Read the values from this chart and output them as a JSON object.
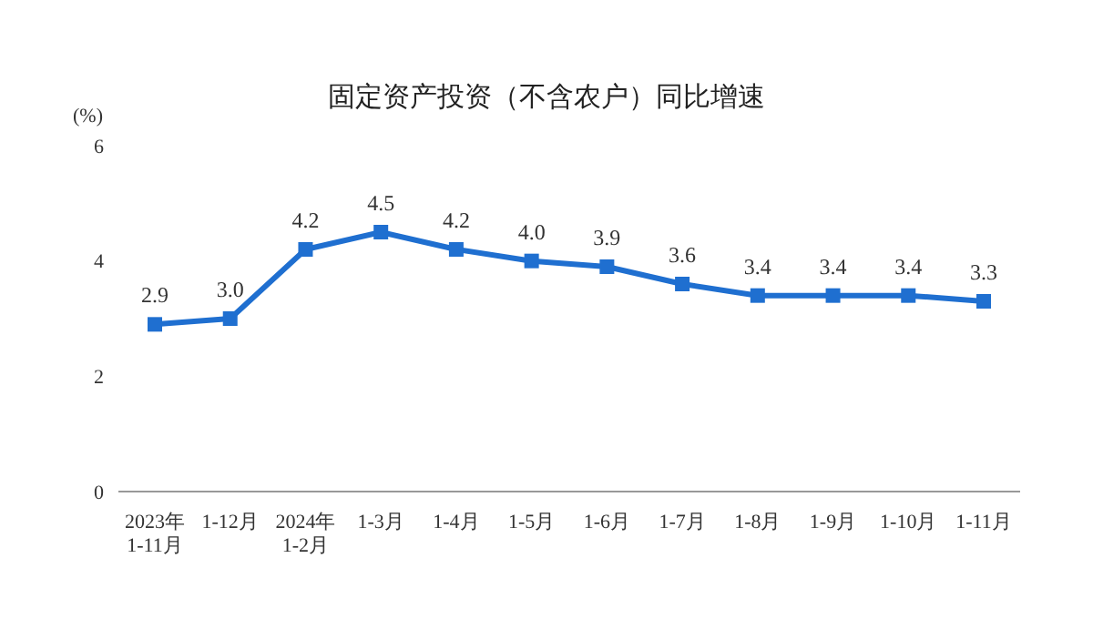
{
  "chart_data": {
    "type": "line",
    "title": "固定资产投资（不含农户）同比增速",
    "ylabel": "(%)",
    "categories": [
      "2023年\n1-11月",
      "1-12月",
      "2024年\n1-2月",
      "1-3月",
      "1-4月",
      "1-5月",
      "1-6月",
      "1-7月",
      "1-8月",
      "1-9月",
      "1-10月",
      "1-11月"
    ],
    "series": [
      {
        "color": "#1f6fd0",
        "values": [
          2.9,
          3.0,
          4.2,
          4.5,
          4.2,
          4.0,
          3.9,
          3.6,
          3.4,
          3.4,
          3.4,
          3.3
        ],
        "value_labels": [
          "2.9",
          "3.0",
          "4.2",
          "4.5",
          "4.2",
          "4.0",
          "3.9",
          "3.6",
          "3.4",
          "3.4",
          "3.4",
          "3.3"
        ]
      }
    ],
    "ylim": [
      0,
      6
    ],
    "yticks": [
      0,
      2,
      4,
      6
    ],
    "grid": false,
    "marker": "square",
    "line_style": "solid"
  }
}
